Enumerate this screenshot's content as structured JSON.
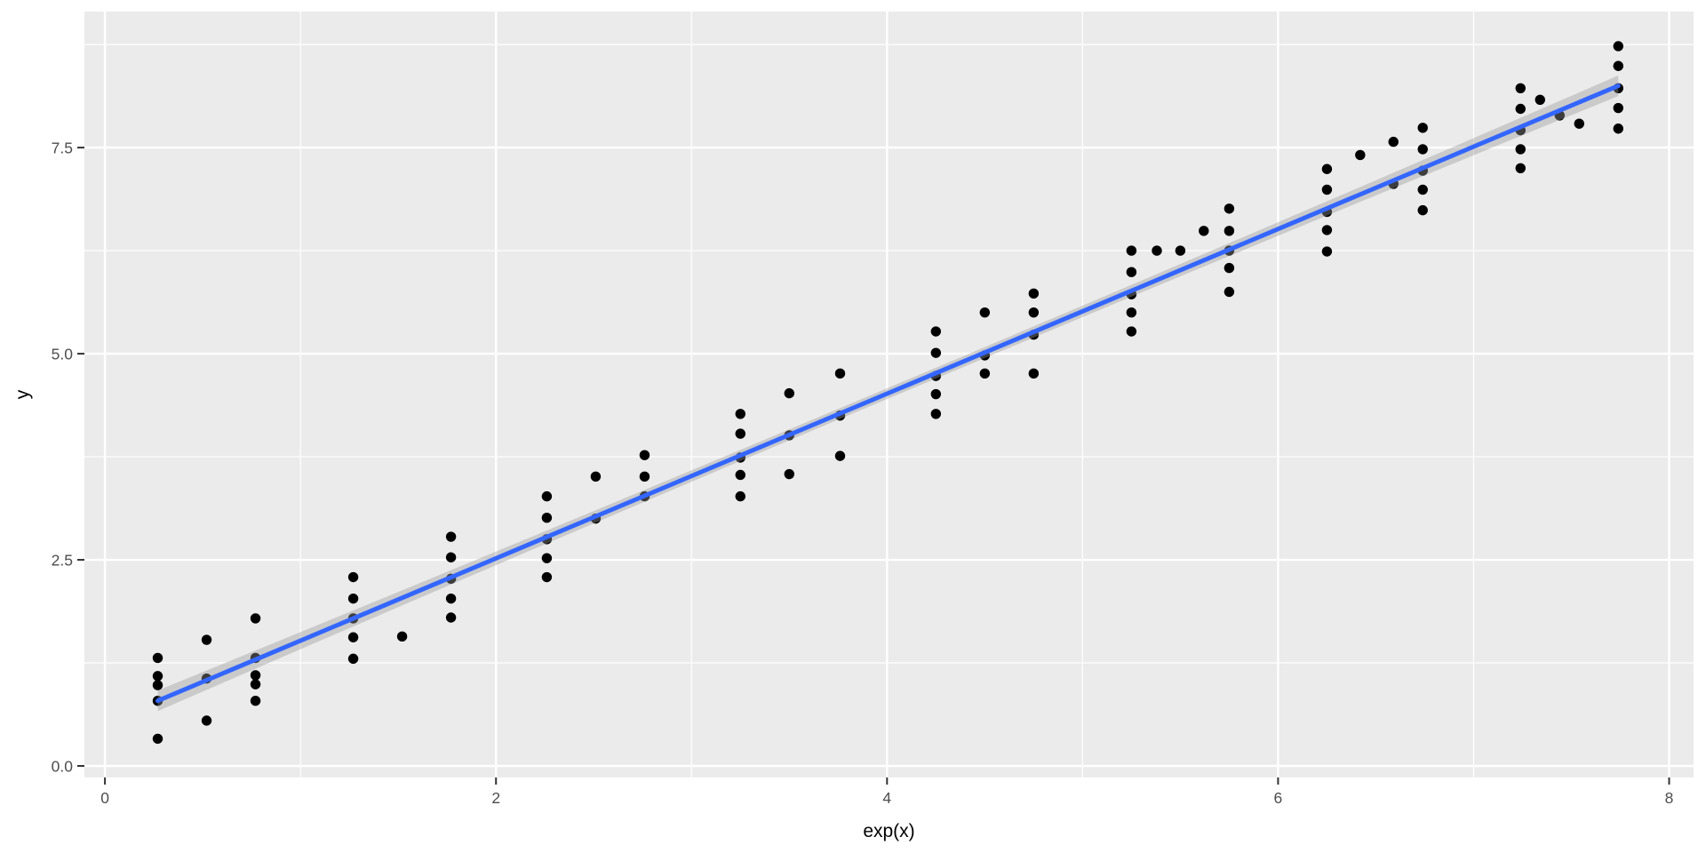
{
  "chart_data": {
    "type": "scatter",
    "title": "",
    "xlabel": "exp(x)",
    "ylabel": "y",
    "xlim": [
      -0.105,
      8.125
    ],
    "ylim": [
      -0.14,
      9.15
    ],
    "x_ticks": [
      0,
      2,
      4,
      6,
      8
    ],
    "x_tick_labels": [
      "0",
      "2",
      "4",
      "6",
      "8"
    ],
    "x_minor_ticks": [
      1,
      3,
      5,
      7
    ],
    "y_ticks": [
      0.0,
      2.5,
      5.0,
      7.5
    ],
    "y_tick_labels": [
      "0.0",
      "2.5",
      "5.0",
      "7.5"
    ],
    "y_minor_ticks": [
      1.25,
      3.75,
      6.25,
      8.75
    ],
    "grid": true,
    "legend": null,
    "points": [
      [
        0.27,
        1.31
      ],
      [
        0.27,
        1.09
      ],
      [
        0.27,
        0.98
      ],
      [
        0.27,
        0.79
      ],
      [
        0.27,
        0.33
      ],
      [
        0.52,
        1.53
      ],
      [
        0.52,
        1.06
      ],
      [
        0.52,
        0.55
      ],
      [
        0.77,
        1.79
      ],
      [
        0.77,
        1.31
      ],
      [
        0.77,
        1.1
      ],
      [
        0.77,
        0.99
      ],
      [
        0.77,
        0.79
      ],
      [
        1.27,
        2.29
      ],
      [
        1.27,
        2.03
      ],
      [
        1.27,
        1.79
      ],
      [
        1.27,
        1.56
      ],
      [
        1.27,
        1.3
      ],
      [
        1.52,
        1.57
      ],
      [
        1.77,
        2.78
      ],
      [
        1.77,
        2.53
      ],
      [
        1.77,
        2.27
      ],
      [
        1.77,
        2.03
      ],
      [
        1.77,
        1.8
      ],
      [
        2.26,
        3.27
      ],
      [
        2.26,
        3.01
      ],
      [
        2.26,
        2.75
      ],
      [
        2.26,
        2.52
      ],
      [
        2.26,
        2.29
      ],
      [
        2.51,
        3.51
      ],
      [
        2.51,
        3.0
      ],
      [
        2.76,
        3.77
      ],
      [
        2.76,
        3.51
      ],
      [
        2.76,
        3.27
      ],
      [
        3.25,
        4.27
      ],
      [
        3.25,
        4.03
      ],
      [
        3.25,
        3.74
      ],
      [
        3.25,
        3.53
      ],
      [
        3.25,
        3.27
      ],
      [
        3.5,
        4.52
      ],
      [
        3.5,
        4.01
      ],
      [
        3.5,
        3.54
      ],
      [
        3.76,
        4.76
      ],
      [
        3.76,
        4.25
      ],
      [
        3.76,
        3.76
      ],
      [
        4.25,
        5.27
      ],
      [
        4.25,
        5.01
      ],
      [
        4.25,
        4.73
      ],
      [
        4.25,
        4.51
      ],
      [
        4.25,
        4.27
      ],
      [
        4.5,
        5.5
      ],
      [
        4.5,
        4.98
      ],
      [
        4.5,
        4.76
      ],
      [
        4.75,
        5.73
      ],
      [
        4.75,
        5.5
      ],
      [
        4.75,
        5.23
      ],
      [
        4.75,
        4.76
      ],
      [
        5.25,
        6.25
      ],
      [
        5.25,
        5.99
      ],
      [
        5.25,
        5.72
      ],
      [
        5.25,
        5.5
      ],
      [
        5.25,
        5.27
      ],
      [
        5.38,
        6.25
      ],
      [
        5.5,
        6.25
      ],
      [
        5.62,
        6.49
      ],
      [
        5.75,
        6.76
      ],
      [
        5.75,
        6.49
      ],
      [
        5.75,
        6.25
      ],
      [
        5.75,
        6.04
      ],
      [
        5.75,
        5.75
      ],
      [
        6.25,
        7.24
      ],
      [
        6.25,
        6.99
      ],
      [
        6.25,
        6.72
      ],
      [
        6.25,
        6.5
      ],
      [
        6.25,
        6.24
      ],
      [
        6.42,
        7.41
      ],
      [
        6.59,
        7.57
      ],
      [
        6.59,
        7.06
      ],
      [
        6.74,
        7.74
      ],
      [
        6.74,
        7.48
      ],
      [
        6.74,
        7.22
      ],
      [
        6.74,
        6.99
      ],
      [
        6.74,
        6.74
      ],
      [
        7.24,
        8.22
      ],
      [
        7.24,
        7.97
      ],
      [
        7.24,
        7.71
      ],
      [
        7.24,
        7.48
      ],
      [
        7.24,
        7.25
      ],
      [
        7.34,
        8.08
      ],
      [
        7.44,
        7.89
      ],
      [
        7.54,
        7.79
      ],
      [
        7.74,
        8.73
      ],
      [
        7.74,
        8.49
      ],
      [
        7.74,
        8.22
      ],
      [
        7.74,
        7.98
      ],
      [
        7.74,
        7.73
      ]
    ],
    "smooth": {
      "method": "lm",
      "x0": 0.27,
      "y0": 0.79,
      "x1": 7.74,
      "y1": 8.25,
      "ci_halfwidth_mid": 0.065,
      "ci_halfwidth_end": 0.125
    },
    "colors": {
      "panel_background": "#EBEBEB",
      "grid": "#FFFFFF",
      "point": "#000000",
      "smooth_line": "#3366FF",
      "ribbon_fill": "rgba(153,153,153,0.4)",
      "tick_mark": "#333333",
      "tick_text": "#4D4D4D",
      "axis_title": "#000000"
    }
  }
}
